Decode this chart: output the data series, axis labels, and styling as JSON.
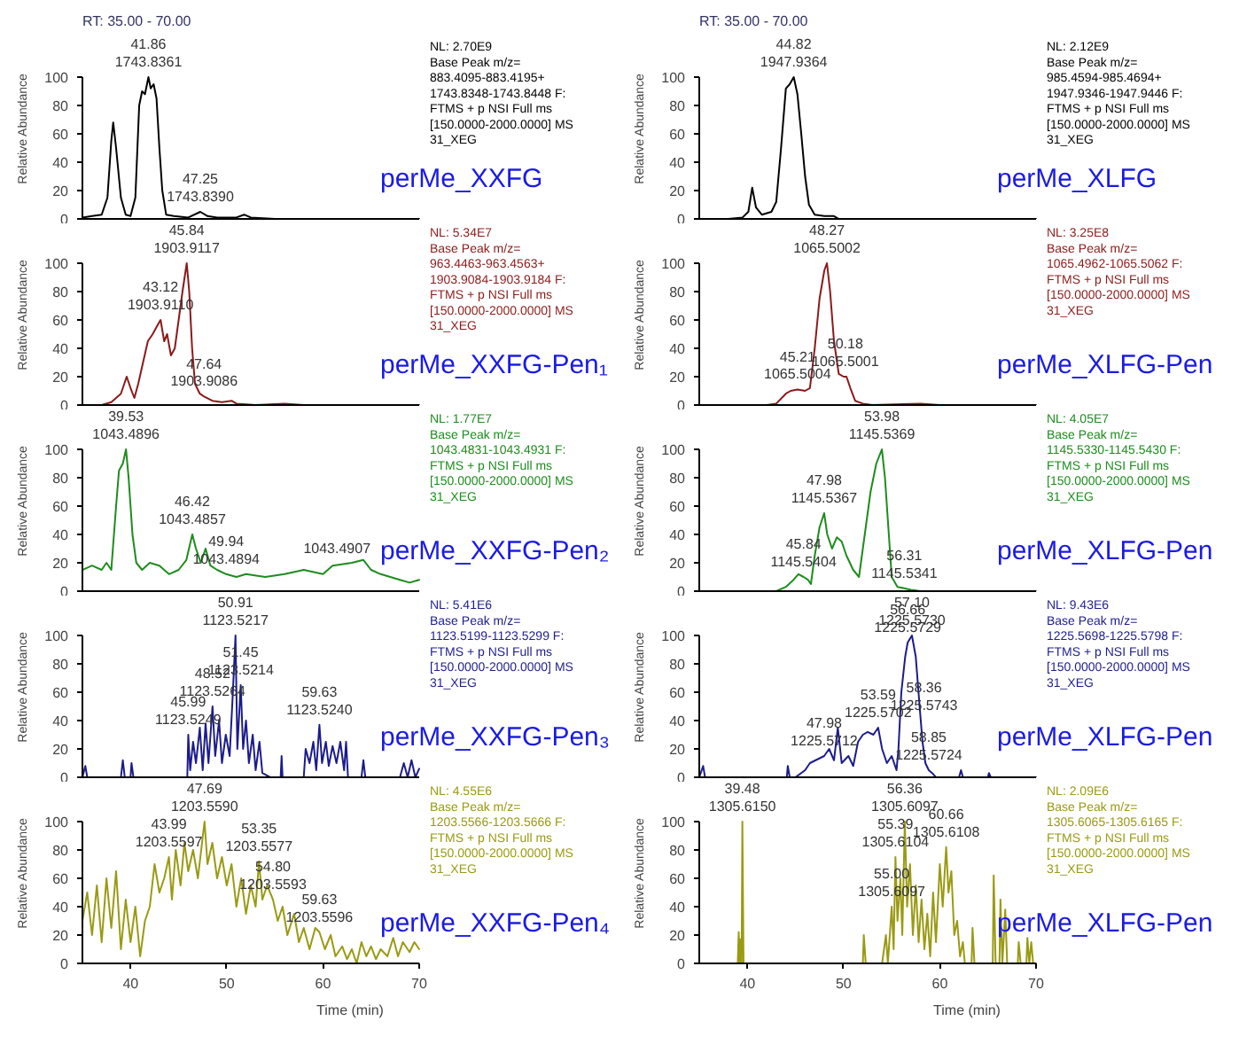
{
  "chart_data": [
    {
      "type": "line",
      "title": "RT: 35.00 - 70.00",
      "subtitle": "perMe_XXFG",
      "ylabel": "Relative Abundance",
      "xlim": [
        35,
        70
      ],
      "ylim": [
        0,
        100
      ],
      "xticks": [
        40,
        50,
        60,
        70
      ],
      "yticks": [
        0,
        20,
        40,
        60,
        80,
        100
      ],
      "tick_labels": "y",
      "x": [
        35,
        36,
        37,
        37.6,
        38,
        38.2,
        38.5,
        39,
        39.5,
        40,
        40.5,
        40.9,
        41.2,
        41.5,
        41.86,
        42.1,
        42.4,
        42.7,
        43.0,
        43.3,
        43.7,
        44.5,
        46,
        47.25,
        48,
        49,
        51,
        51.8,
        52.5,
        55,
        70
      ],
      "series": [
        {
          "color": "#000000",
          "values": [
            1,
            2,
            3,
            15,
            55,
            68,
            50,
            15,
            3,
            2,
            15,
            80,
            90,
            88,
            100,
            92,
            95,
            85,
            50,
            20,
            3,
            2,
            1,
            5,
            2,
            1,
            1,
            3,
            1,
            0,
            0
          ]
        }
      ],
      "annotations": [
        "NL: 2.70E9\nBase Peak m/z=\n883.4095-883.4195+\n1743.8348-1743.8448 F:\nFTMS + p NSI Full ms\n[150.0000-2000.0000]  MS\n31_XEG",
        {
          "text": "41.86\n1743.8361",
          "x": 41.86,
          "y": 100
        },
        {
          "text": "47.25\n1743.8390",
          "x": 47.25,
          "y": 5
        }
      ]
    },
    {
      "type": "line",
      "subtitle": "perMe_XXFG-Pen₁",
      "ylabel": "Relative Abundance",
      "xlim": [
        35,
        70
      ],
      "ylim": [
        0,
        100
      ],
      "xticks": [
        40,
        50,
        60,
        70
      ],
      "yticks": [
        0,
        20,
        40,
        60,
        80,
        100
      ],
      "tick_labels": "y",
      "x": [
        35,
        37,
        38,
        39,
        39.6,
        40,
        40.4,
        40.8,
        41.3,
        41.8,
        42.3,
        42.7,
        43.12,
        43.5,
        43.8,
        44.2,
        44.6,
        45,
        45.4,
        45.84,
        46.1,
        46.4,
        46.7,
        47.2,
        47.64,
        48.5,
        49.5,
        50.5,
        51,
        53,
        56,
        58,
        70
      ],
      "series": [
        {
          "color": "#8b1a1a",
          "values": [
            0,
            0,
            2,
            8,
            20,
            12,
            5,
            15,
            30,
            45,
            50,
            55,
            60,
            45,
            50,
            35,
            40,
            60,
            80,
            100,
            80,
            40,
            15,
            8,
            6,
            3,
            2,
            3,
            1,
            0,
            1,
            0,
            0
          ]
        }
      ],
      "annotations": [
        "NL: 5.34E7\nBase Peak m/z=\n963.4463-963.4563+\n1903.9084-1903.9184 F:\nFTMS + p NSI Full ms\n[150.0000-2000.0000]  MS\n31_XEG",
        {
          "text": "45.84\n1903.9117",
          "x": 45.84,
          "y": 100
        },
        {
          "text": "43.12\n1903.9110",
          "x": 43.12,
          "y": 60
        },
        {
          "text": "47.64\n1903.9086",
          "x": 47.64,
          "y": 6
        }
      ]
    },
    {
      "type": "line",
      "subtitle": "perMe_XXFG-Pen₂",
      "ylabel": "Relative Abundance",
      "xlim": [
        35,
        70
      ],
      "ylim": [
        0,
        100
      ],
      "xticks": [
        40,
        50,
        60,
        70
      ],
      "yticks": [
        0,
        20,
        40,
        60,
        80,
        100
      ],
      "tick_labels": "y",
      "x": [
        35,
        36,
        37,
        37.5,
        38,
        38.5,
        38.8,
        39.2,
        39.53,
        39.8,
        40.2,
        40.6,
        41.2,
        42,
        43,
        44,
        45,
        45.8,
        46.42,
        46.8,
        47.3,
        47.8,
        48.3,
        49,
        49.94,
        51,
        52,
        54,
        56,
        58,
        60,
        61,
        63,
        64.2,
        65,
        66,
        68,
        69,
        70
      ],
      "series": [
        {
          "color": "#1e8c1e",
          "values": [
            15,
            18,
            15,
            20,
            15,
            60,
            85,
            90,
            100,
            80,
            40,
            20,
            15,
            20,
            18,
            12,
            15,
            22,
            40,
            30,
            20,
            30,
            18,
            15,
            12,
            10,
            12,
            10,
            12,
            15,
            12,
            18,
            20,
            22,
            15,
            12,
            8,
            6,
            8
          ]
        }
      ],
      "annotations": [
        "NL: 1.77E7\nBase Peak m/z=\n1043.4831-1043.4931 F:\nFTMS + p NSI Full ms\n[150.0000-2000.0000]  MS\n31_XEG",
        {
          "text": "39.53\n1043.4896",
          "x": 39.53,
          "y": 100
        },
        {
          "text": "46.42\n1043.4857",
          "x": 46.42,
          "y": 40
        },
        {
          "text": "49.94\n1043.4894",
          "x": 49.94,
          "y": 12
        },
        {
          "text": "1043.4907",
          "x": 64.2,
          "y": 22
        }
      ]
    },
    {
      "type": "line",
      "subtitle": "perMe_XXFG-Pen₃",
      "ylabel": "Relative Abundance",
      "xlim": [
        35,
        70
      ],
      "ylim": [
        0,
        100
      ],
      "xticks": [
        40,
        50,
        60,
        70
      ],
      "yticks": [
        0,
        20,
        40,
        60,
        80,
        100
      ],
      "tick_labels": "y",
      "x": [
        35,
        35.3,
        35.5,
        39,
        39.2,
        39.4,
        40,
        40.1,
        40.3,
        45.9,
        46,
        46.2,
        46.5,
        46.8,
        47.2,
        47.5,
        47.8,
        48.1,
        48.52,
        48.8,
        49.2,
        49.5,
        49.9,
        50.3,
        50.6,
        50.91,
        51.1,
        51.45,
        51.7,
        52,
        52.3,
        52.7,
        53,
        53.4,
        53.7,
        54.5,
        55.6,
        55.7,
        55.8,
        58,
        58.2,
        58.6,
        59,
        59.3,
        59.63,
        59.9,
        60.3,
        60.6,
        61,
        61.4,
        61.8,
        62.2,
        62.4,
        62.6,
        64,
        64.2,
        64.4,
        68,
        68.4,
        68.8,
        69.2,
        69.6,
        70
      ],
      "series": [
        {
          "color": "#1c1c8c",
          "values": [
            0,
            8,
            0,
            0,
            12,
            0,
            0,
            10,
            0,
            0,
            30,
            5,
            25,
            10,
            35,
            5,
            38,
            10,
            50,
            15,
            40,
            10,
            30,
            15,
            55,
            100,
            20,
            65,
            20,
            40,
            10,
            30,
            5,
            25,
            3,
            0,
            0,
            15,
            0,
            0,
            20,
            10,
            25,
            5,
            37,
            10,
            25,
            8,
            22,
            10,
            25,
            5,
            25,
            0,
            0,
            12,
            0,
            0,
            10,
            0,
            12,
            0,
            6
          ]
        }
      ],
      "annotations": [
        "NL: 5.41E6\nBase Peak m/z=\n1123.5199-1123.5299 F:\nFTMS + p NSI Full ms\n[150.0000-2000.0000]  MS\n31_XEG",
        {
          "text": "50.91\n1123.5217",
          "x": 50.91,
          "y": 100
        },
        {
          "text": "51.45\n1123.5214",
          "x": 51.45,
          "y": 65
        },
        {
          "text": "48.52\n1123.5264",
          "x": 48.52,
          "y": 50
        },
        {
          "text": "45.99\n1123.5249",
          "x": 45.99,
          "y": 30
        },
        {
          "text": "59.63\n1123.5240",
          "x": 59.63,
          "y": 37
        }
      ]
    },
    {
      "type": "line",
      "subtitle": "perMe_XXFG-Pen₄",
      "ylabel": "Relative Abundance",
      "xlabel": "Time (min)",
      "xlim": [
        35,
        70
      ],
      "ylim": [
        0,
        100
      ],
      "xticks": [
        40,
        50,
        60,
        70
      ],
      "yticks": [
        0,
        20,
        40,
        60,
        80,
        100
      ],
      "x": [
        35,
        35.5,
        36,
        36.5,
        37,
        37.5,
        38,
        38.5,
        39,
        39.5,
        40,
        40.5,
        41,
        41.5,
        42,
        42.5,
        43,
        43.5,
        43.99,
        44.3,
        44.7,
        45.2,
        45.6,
        46,
        46.5,
        47,
        47.69,
        48,
        48.5,
        49,
        49.5,
        50,
        50.5,
        51,
        51.5,
        52,
        52.5,
        53,
        53.35,
        53.7,
        54.2,
        54.8,
        55.3,
        55.8,
        56.3,
        57,
        57.5,
        58,
        58.6,
        59.2,
        59.63,
        60.2,
        60.8,
        61.3,
        62,
        62.5,
        63,
        63.5,
        64,
        64.5,
        65,
        65.5,
        66,
        66.7,
        67.3,
        67.8,
        68.3,
        69,
        69.5,
        70
      ],
      "series": [
        {
          "color": "#9a9a14",
          "values": [
            30,
            50,
            20,
            55,
            15,
            60,
            25,
            65,
            10,
            45,
            15,
            40,
            5,
            30,
            40,
            70,
            50,
            60,
            75,
            45,
            80,
            55,
            85,
            65,
            80,
            60,
            100,
            70,
            85,
            60,
            75,
            55,
            70,
            40,
            60,
            35,
            55,
            40,
            72,
            45,
            55,
            45,
            30,
            40,
            20,
            35,
            15,
            25,
            10,
            25,
            22,
            10,
            20,
            5,
            12,
            3,
            10,
            0,
            15,
            5,
            12,
            3,
            10,
            5,
            18,
            5,
            15,
            8,
            15,
            10
          ]
        }
      ],
      "annotations": [
        "NL: 4.55E6\nBase Peak m/z=\n1203.5566-1203.5666 F:\nFTMS + p NSI Full ms\n[150.0000-2000.0000]  MS\n31_XEG",
        {
          "text": "47.69\n1203.5590",
          "x": 47.69,
          "y": 100
        },
        {
          "text": "43.99\n1203.5597",
          "x": 43.99,
          "y": 75
        },
        {
          "text": "53.35\n1203.5577",
          "x": 53.35,
          "y": 72
        },
        {
          "text": "54.80\n1203.5593",
          "x": 54.8,
          "y": 45
        },
        {
          "text": "59.63\n1203.5596",
          "x": 59.63,
          "y": 22
        }
      ]
    },
    {
      "type": "line",
      "title": "RT: 35.00 - 70.00",
      "subtitle": "perMe_XLFG",
      "ylabel": "Relative Abundance",
      "xlim": [
        35,
        70
      ],
      "ylim": [
        0,
        100
      ],
      "xticks": [
        40,
        50,
        60,
        70
      ],
      "yticks": [
        0,
        20,
        40,
        60,
        80,
        100
      ],
      "tick_labels": "y",
      "x": [
        35,
        38,
        39.5,
        40.1,
        40.5,
        40.9,
        41.5,
        42.5,
        43,
        43.5,
        44,
        44.4,
        44.82,
        45.2,
        45.6,
        46,
        46.4,
        47,
        48,
        49,
        49.5,
        70
      ],
      "series": [
        {
          "color": "#000000",
          "values": [
            0,
            0,
            1,
            5,
            22,
            8,
            3,
            5,
            12,
            50,
            92,
            95,
            100,
            88,
            60,
            30,
            10,
            3,
            2,
            2,
            0,
            0
          ]
        }
      ],
      "annotations": [
        "NL: 2.12E9\nBase Peak m/z=\n985.4594-985.4694+\n1947.9346-1947.9446 F:\nFTMS + p NSI Full ms\n[150.0000-2000.0000]  MS\n31_XEG",
        {
          "text": "44.82\n1947.9364",
          "x": 44.82,
          "y": 100
        }
      ]
    },
    {
      "type": "line",
      "subtitle": "perMe_XLFG-Pen",
      "ylabel": "Relative Abundance",
      "xlim": [
        35,
        70
      ],
      "ylim": [
        0,
        100
      ],
      "xticks": [
        40,
        50,
        60,
        70
      ],
      "yticks": [
        0,
        20,
        40,
        60,
        80,
        100
      ],
      "tick_labels": "y",
      "x": [
        35,
        42,
        43,
        44,
        44.5,
        45.21,
        46,
        46.5,
        47,
        47.5,
        48,
        48.27,
        48.6,
        49,
        49.5,
        50,
        50.3,
        50.7,
        51.2,
        52,
        53,
        58,
        60,
        70
      ],
      "series": [
        {
          "color": "#8b1a1a",
          "values": [
            0,
            0,
            1,
            8,
            10,
            11,
            10,
            12,
            40,
            75,
            95,
            100,
            80,
            45,
            22,
            20,
            20,
            12,
            3,
            1,
            0,
            1,
            0,
            0
          ]
        }
      ],
      "annotations": [
        "NL: 3.25E8\nBase Peak m/z=\n1065.4962-1065.5062 F:\nFTMS + p NSI Full ms\n[150.0000-2000.0000]  MS\n31_XEG",
        {
          "text": "48.27\n1065.5002",
          "x": 48.27,
          "y": 100
        },
        {
          "text": "45.21\n1065.5004",
          "x": 45.21,
          "y": 11
        },
        {
          "text": "50.18\n1065.5001",
          "x": 50.18,
          "y": 20
        }
      ]
    },
    {
      "type": "line",
      "subtitle": "perMe_XLFG-Pen",
      "ylabel": "Relative Abundance",
      "xlim": [
        35,
        70
      ],
      "ylim": [
        0,
        100
      ],
      "xticks": [
        40,
        50,
        60,
        70
      ],
      "yticks": [
        0,
        20,
        40,
        60,
        80,
        100
      ],
      "tick_labels": "y",
      "x": [
        35,
        43,
        44,
        44.8,
        45.3,
        45.84,
        46.3,
        46.6,
        47,
        47.5,
        47.98,
        48.3,
        48.8,
        49.3,
        49.8,
        50.3,
        51,
        51.6,
        52.2,
        52.8,
        53.4,
        53.98,
        54.3,
        54.7,
        55,
        55.6,
        56.31,
        57,
        58,
        70
      ],
      "series": [
        {
          "color": "#1e8c1e",
          "values": [
            0,
            0,
            3,
            8,
            12,
            10,
            8,
            5,
            25,
            45,
            55,
            40,
            30,
            38,
            35,
            25,
            15,
            10,
            40,
            70,
            90,
            100,
            80,
            40,
            10,
            3,
            2,
            1,
            0,
            0
          ]
        }
      ],
      "annotations": [
        "NL: 4.05E7\nBase Peak m/z=\n1145.5330-1145.5430 F:\nFTMS + p NSI Full ms\n[150.0000-2000.0000]  MS\n31_XEG",
        {
          "text": "53.98\n1145.5369",
          "x": 53.98,
          "y": 100
        },
        {
          "text": "47.98\n1145.5367",
          "x": 47.98,
          "y": 55
        },
        {
          "text": "45.84\n1145.5404",
          "x": 45.84,
          "y": 10
        },
        {
          "text": "56.31\n1145.5341",
          "x": 56.31,
          "y": 2
        }
      ]
    },
    {
      "type": "line",
      "subtitle": "perMe_XLFG-Pen",
      "ylabel": "Relative Abundance",
      "xlim": [
        35,
        70
      ],
      "ylim": [
        0,
        100
      ],
      "xticks": [
        40,
        50,
        60,
        70
      ],
      "yticks": [
        0,
        20,
        40,
        60,
        80,
        100
      ],
      "tick_labels": "y",
      "x": [
        35,
        35.4,
        35.6,
        44.1,
        44.2,
        44.4,
        45,
        46,
        46.5,
        47.98,
        48.5,
        49,
        49.4,
        49.8,
        50.5,
        51,
        51.5,
        52,
        52.5,
        53.1,
        53.59,
        54,
        54.5,
        55,
        55.5,
        55.7,
        56,
        56.4,
        56.66,
        57.1,
        57.5,
        57.9,
        58.2,
        58.5,
        58.85,
        59.2,
        59.6,
        62,
        62.2,
        62.4,
        65,
        65.1,
        65.3,
        70
      ],
      "series": [
        {
          "color": "#1c1c8c",
          "values": [
            0,
            8,
            0,
            0,
            8,
            0,
            0,
            5,
            10,
            15,
            20,
            12,
            35,
            10,
            15,
            8,
            25,
            30,
            32,
            30,
            35,
            20,
            10,
            15,
            5,
            20,
            60,
            85,
            95,
            100,
            85,
            50,
            25,
            10,
            5,
            3,
            0,
            0,
            5,
            0,
            0,
            3,
            0,
            0
          ]
        }
      ],
      "annotations": [
        "NL: 9.43E6\nBase Peak m/z=\n1225.5698-1225.5798 F:\nFTMS + p NSI Full ms\n[150.0000-2000.0000]  MS\n31_XEG",
        {
          "text": "57.10\n1225.5730",
          "x": 57.1,
          "y": 100
        },
        {
          "text": "56.66\n1225.5729",
          "x": 56.66,
          "y": 95
        },
        {
          "text": "53.59\n1225.5702",
          "x": 53.59,
          "y": 35
        },
        {
          "text": "47.98\n1225.5712",
          "x": 47.98,
          "y": 15
        },
        {
          "text": "58.36\n1225.5743",
          "x": 58.36,
          "y": 40
        },
        {
          "text": "58.85\n1225.5724",
          "x": 58.85,
          "y": 5
        }
      ]
    },
    {
      "type": "line",
      "subtitle": "perMe_XLFG-Pen",
      "ylabel": "Relative Abundance",
      "xlabel": "Time (min)",
      "xlim": [
        35,
        70
      ],
      "ylim": [
        0,
        100
      ],
      "xticks": [
        40,
        50,
        60,
        70
      ],
      "yticks": [
        0,
        20,
        40,
        60,
        80,
        100
      ],
      "x": [
        35,
        39.0,
        39.1,
        39.2,
        39.3,
        39.4,
        39.48,
        39.6,
        52,
        52.1,
        52.3,
        54,
        54.4,
        54.6,
        55,
        55.2,
        55.39,
        55.6,
        55.9,
        56.1,
        56.36,
        56.6,
        56.9,
        57.2,
        57.5,
        57.8,
        58.1,
        58.4,
        58.7,
        59,
        59.3,
        59.6,
        60,
        60.3,
        60.66,
        60.9,
        61.2,
        61.5,
        61.8,
        62.1,
        62.4,
        62.6,
        63.3,
        63.4,
        63.6,
        65.5,
        65.6,
        65.8,
        66.2,
        66.3,
        66.5,
        66.8,
        67,
        68.1,
        68.2,
        68.4,
        69,
        69.1,
        69.3,
        69.5,
        69.7,
        70
      ],
      "series": [
        {
          "color": "#9a9a14",
          "values": [
            0,
            0,
            22,
            0,
            17,
            0,
            100,
            0,
            0,
            20,
            0,
            0,
            20,
            0,
            40,
            10,
            75,
            30,
            60,
            20,
            100,
            40,
            70,
            20,
            55,
            15,
            45,
            10,
            35,
            5,
            50,
            15,
            70,
            40,
            82,
            50,
            65,
            20,
            30,
            5,
            15,
            0,
            0,
            25,
            0,
            0,
            62,
            0,
            0,
            45,
            0,
            38,
            0,
            0,
            15,
            0,
            0,
            18,
            0,
            15,
            0,
            0
          ]
        }
      ],
      "annotations": [
        "NL: 2.09E6\nBase Peak m/z=\n1305.6065-1305.6165 F:\nFTMS + p NSI Full ms\n[150.0000-2000.0000]  MS\n31_XEG",
        {
          "text": "39.48\n1305.6150",
          "x": 39.48,
          "y": 100
        },
        {
          "text": "56.36\n1305.6097",
          "x": 56.36,
          "y": 100
        },
        {
          "text": "55.39\n1305.6104",
          "x": 55.39,
          "y": 75
        },
        {
          "text": "55.00\n1305.6097",
          "x": 55.0,
          "y": 40
        },
        {
          "text": "60.66\n1305.6108",
          "x": 60.66,
          "y": 82
        }
      ]
    }
  ]
}
